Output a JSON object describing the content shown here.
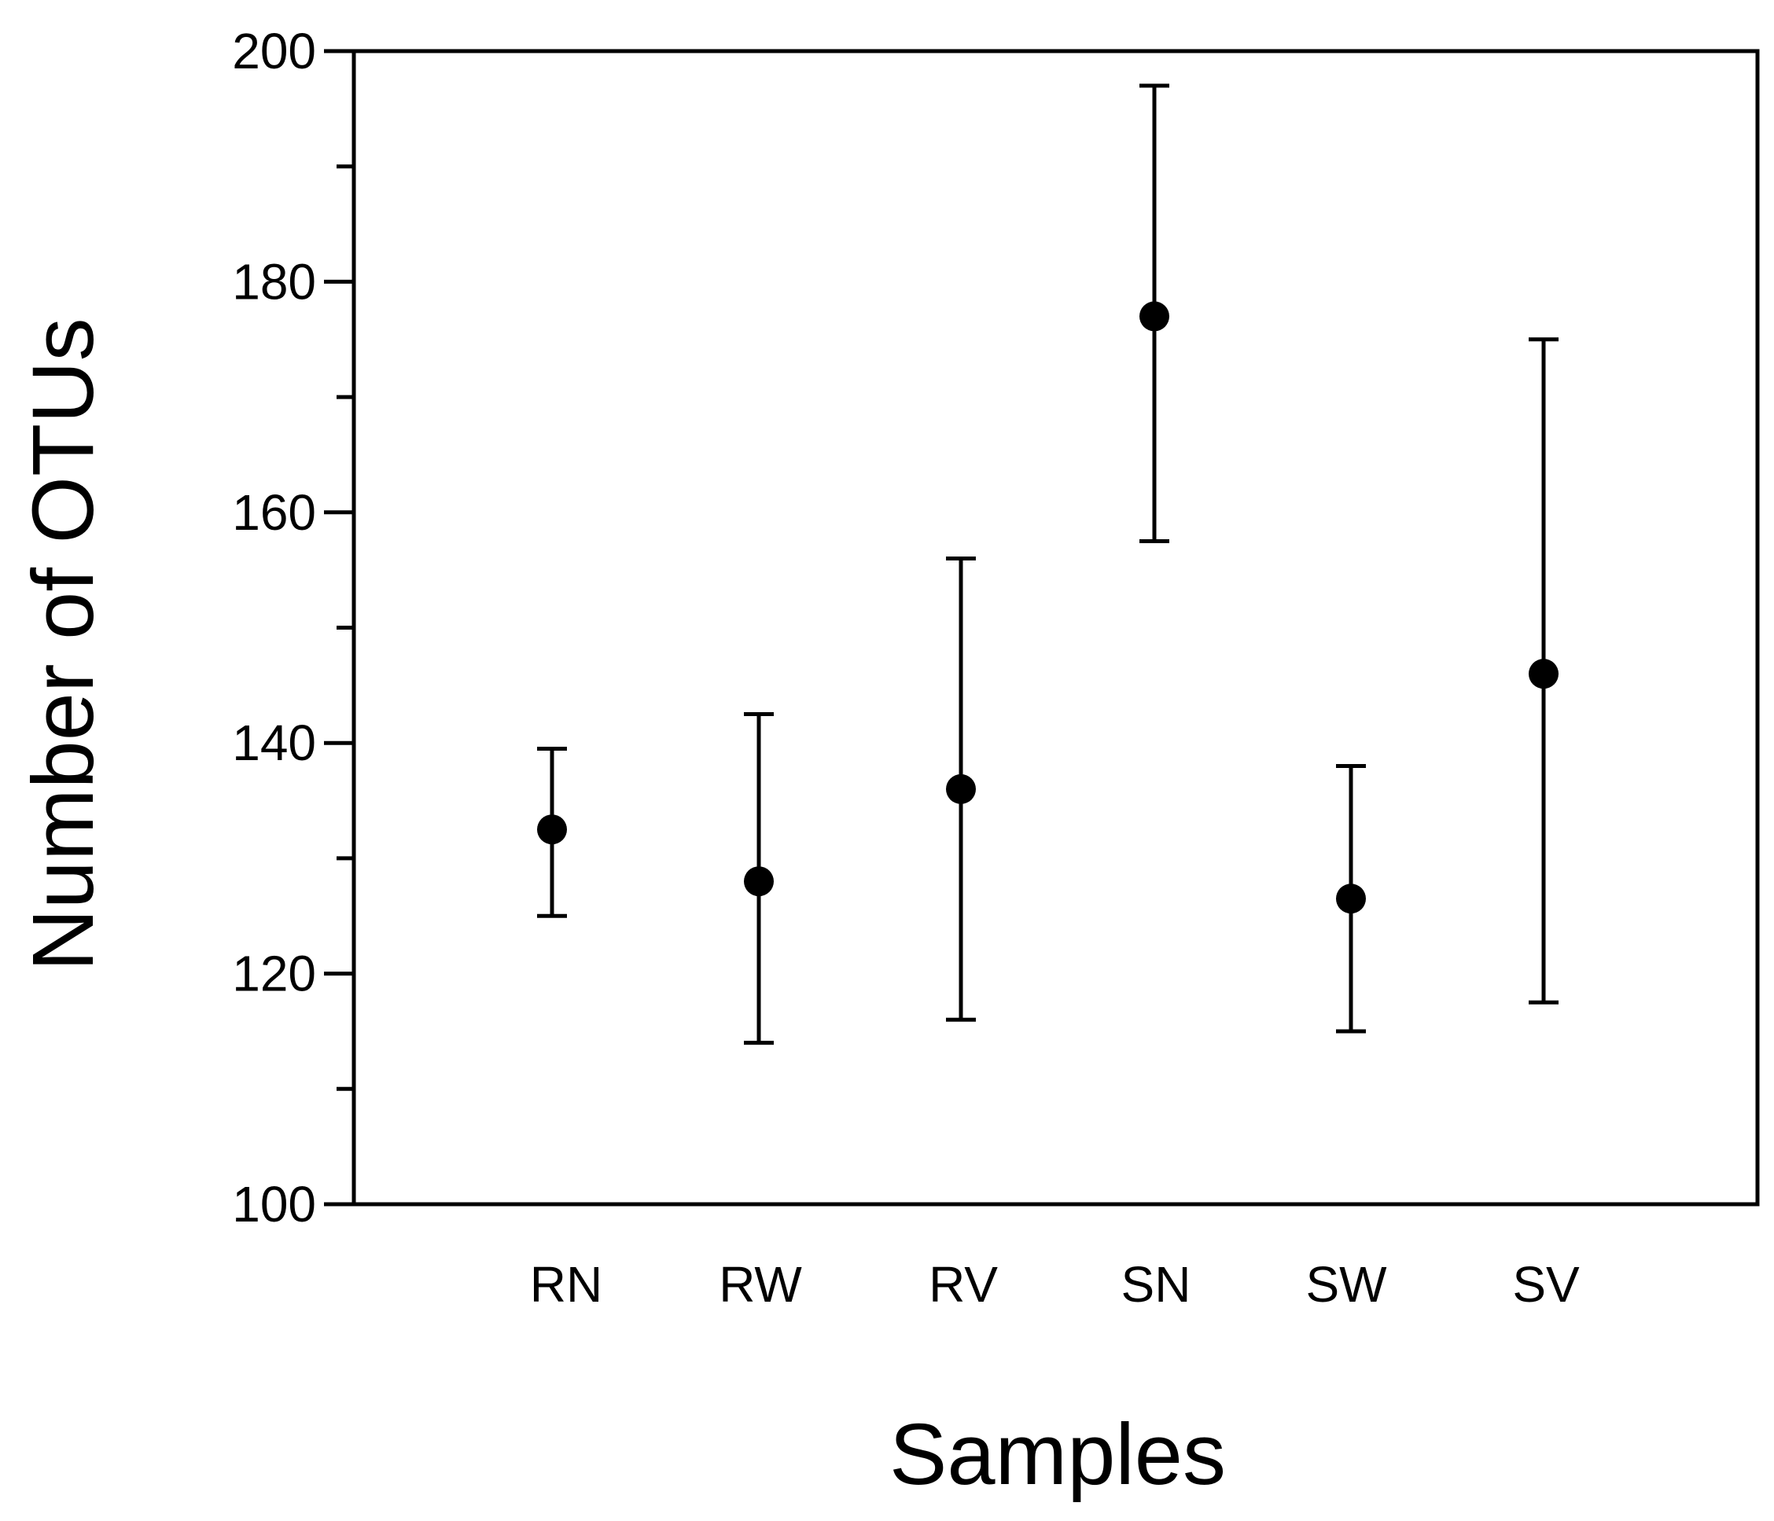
{
  "chart_data": {
    "type": "scatter",
    "title": "",
    "xlabel": "Samples",
    "ylabel": "Number of OTUs",
    "categories": [
      "RN",
      "RW",
      "RV",
      "SN",
      "SW",
      "SV"
    ],
    "series": [
      {
        "values": [
          132.5,
          128,
          136,
          177,
          126.5,
          146
        ],
        "error_low": [
          125,
          114,
          116,
          157.5,
          115,
          117.5
        ],
        "error_high": [
          139.5,
          142.5,
          156,
          197,
          138,
          175
        ]
      }
    ],
    "ylim": [
      100,
      200
    ],
    "y_major_ticks": [
      100,
      120,
      140,
      160,
      180,
      200
    ],
    "y_minor_ticks": [
      110,
      130,
      150,
      170,
      190
    ],
    "grid": false,
    "legend": "none",
    "colors": {
      "marker": "#000000",
      "axis": "#000000"
    }
  }
}
